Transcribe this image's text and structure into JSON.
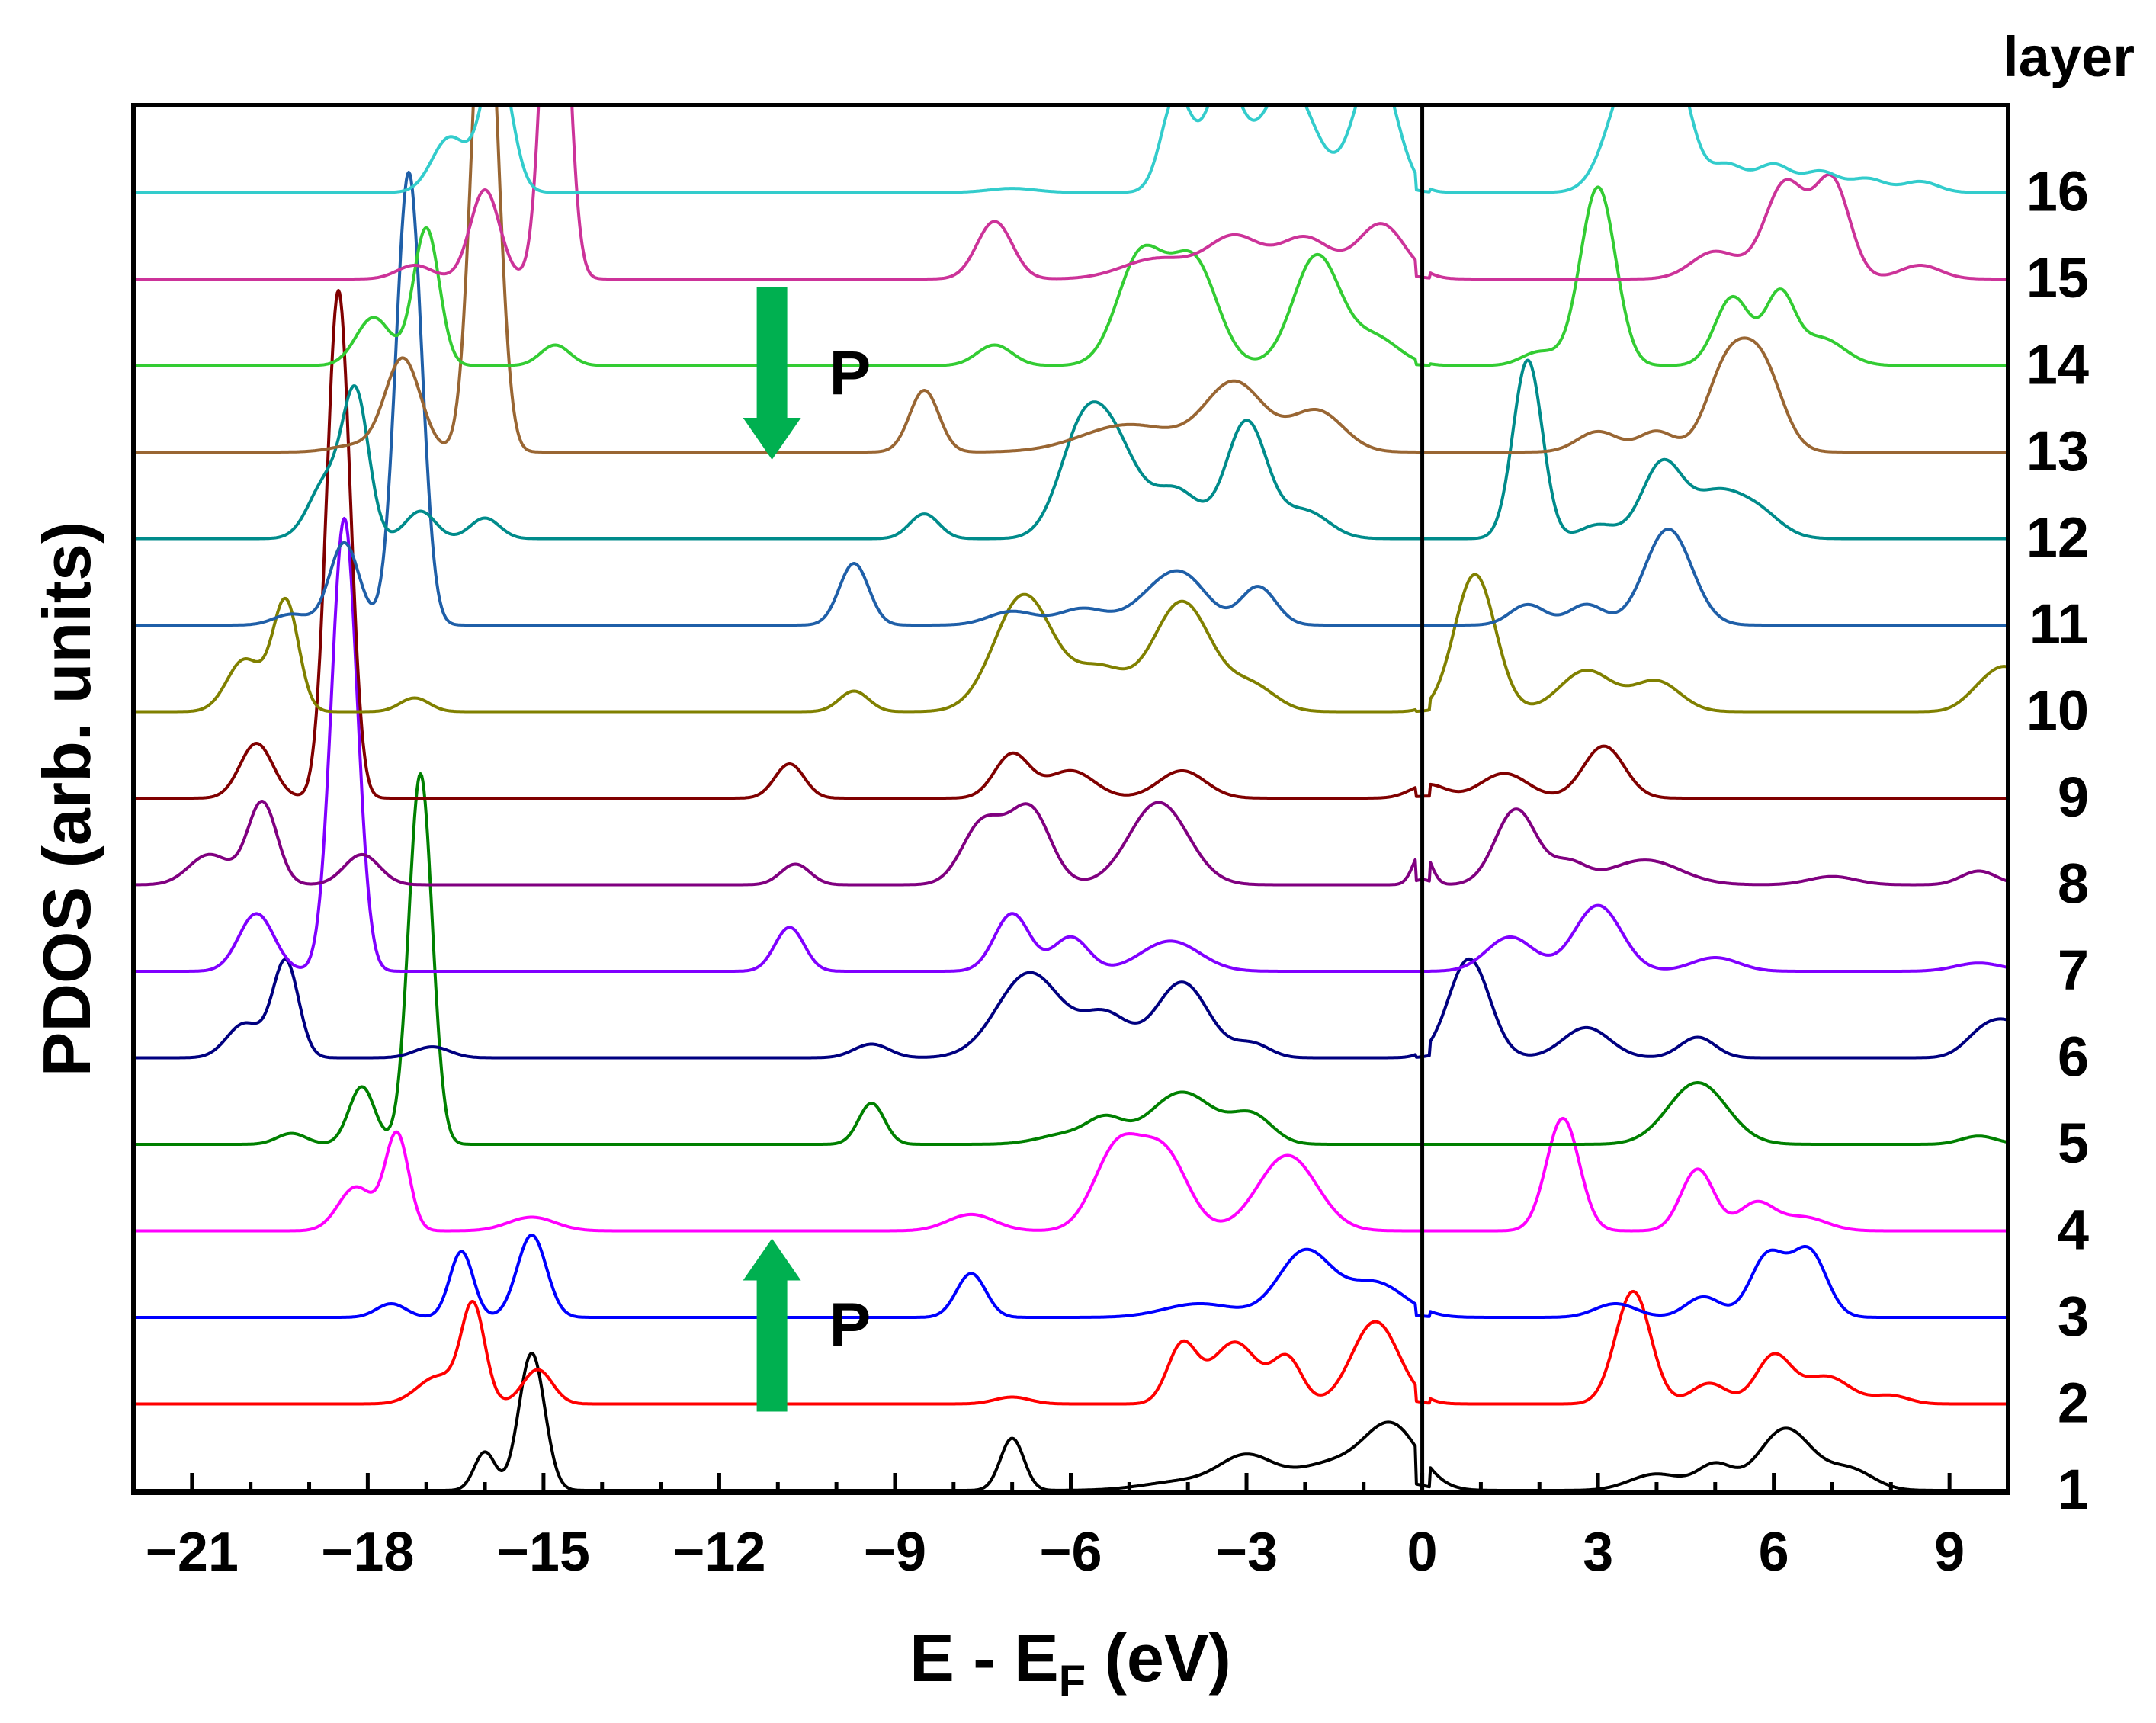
{
  "chart_data": {
    "type": "line",
    "title": "",
    "xlabel_main": "E - E",
    "xlabel_sub": "F",
    "xlabel_unit": " (eV)",
    "ylabel": "PDOS (arb. units)",
    "legend_title": "layer",
    "xlim": [
      -22,
      10
    ],
    "x_ticks": [
      -21,
      -18,
      -15,
      -12,
      -9,
      -6,
      -3,
      0,
      3,
      6,
      9
    ],
    "x_tick_labels": [
      "−21",
      "−18",
      "−15",
      "−12",
      "−9",
      "−6",
      "−3",
      "0",
      "3",
      "6",
      "9"
    ],
    "fermi_level": 0,
    "annotations": [
      {
        "text": "P",
        "direction": "down",
        "x": -11.1,
        "layer_from": 15,
        "layer_to": 13
      },
      {
        "text": "P",
        "direction": "up",
        "x": -11.1,
        "layer_from": 2,
        "layer_to": 4
      }
    ],
    "series": [
      {
        "name": "1",
        "color": "#000000",
        "peaks": [
          [
            -16.0,
            0.28,
            0.18
          ],
          [
            -15.2,
            1.0,
            0.22
          ],
          [
            -7.0,
            0.38,
            0.2
          ],
          [
            -4.0,
            0.07,
            0.7
          ],
          [
            -3.0,
            0.22,
            0.45
          ],
          [
            -1.5,
            0.2,
            0.7
          ],
          [
            -0.5,
            0.42,
            0.45
          ],
          [
            4.0,
            0.12,
            0.45
          ],
          [
            5.0,
            0.18,
            0.3
          ],
          [
            6.2,
            0.45,
            0.45
          ],
          [
            7.3,
            0.15,
            0.4
          ]
        ]
      },
      {
        "name": "2",
        "color": "#ff0000",
        "peaks": [
          [
            -16.8,
            0.2,
            0.35
          ],
          [
            -16.2,
            0.7,
            0.2
          ],
          [
            -15.1,
            0.25,
            0.25
          ],
          [
            -7.0,
            0.05,
            0.3
          ],
          [
            -4.1,
            0.42,
            0.25
          ],
          [
            -3.2,
            0.45,
            0.4
          ],
          [
            -2.3,
            0.32,
            0.25
          ],
          [
            -0.8,
            0.6,
            0.4
          ],
          [
            3.6,
            0.82,
            0.3
          ],
          [
            4.9,
            0.15,
            0.3
          ],
          [
            6.0,
            0.35,
            0.3
          ],
          [
            6.9,
            0.2,
            0.4
          ],
          [
            8.0,
            0.06,
            0.3
          ]
        ]
      },
      {
        "name": "3",
        "color": "#0000ff",
        "peaks": [
          [
            -17.6,
            0.1,
            0.25
          ],
          [
            -16.4,
            0.48,
            0.2
          ],
          [
            -15.2,
            0.6,
            0.25
          ],
          [
            -7.7,
            0.32,
            0.25
          ],
          [
            -3.8,
            0.1,
            0.6
          ],
          [
            -2.0,
            0.48,
            0.45
          ],
          [
            -0.8,
            0.25,
            0.5
          ],
          [
            3.3,
            0.1,
            0.35
          ],
          [
            4.8,
            0.15,
            0.3
          ],
          [
            5.9,
            0.45,
            0.3
          ],
          [
            6.6,
            0.48,
            0.3
          ]
        ]
      },
      {
        "name": "4",
        "color": "#ff00ff",
        "peaks": [
          [
            -18.2,
            0.32,
            0.3
          ],
          [
            -17.5,
            0.7,
            0.2
          ],
          [
            -15.2,
            0.1,
            0.4
          ],
          [
            -7.7,
            0.12,
            0.4
          ],
          [
            -5.2,
            0.6,
            0.4
          ],
          [
            -4.4,
            0.55,
            0.4
          ],
          [
            -2.3,
            0.55,
            0.5
          ],
          [
            2.4,
            0.82,
            0.28
          ],
          [
            4.7,
            0.45,
            0.28
          ],
          [
            5.7,
            0.2,
            0.3
          ],
          [
            6.5,
            0.1,
            0.4
          ]
        ]
      },
      {
        "name": "5",
        "color": "#008000",
        "peaks": [
          [
            -19.3,
            0.08,
            0.25
          ],
          [
            -18.1,
            0.42,
            0.22
          ],
          [
            -17.1,
            2.7,
            0.2
          ],
          [
            -9.4,
            0.3,
            0.22
          ],
          [
            -6.0,
            0.08,
            0.5
          ],
          [
            -5.4,
            0.15,
            0.3
          ],
          [
            -4.1,
            0.38,
            0.55
          ],
          [
            -2.9,
            0.2,
            0.35
          ],
          [
            4.7,
            0.45,
            0.5
          ],
          [
            9.5,
            0.06,
            0.3
          ]
        ]
      },
      {
        "name": "6",
        "color": "#000080",
        "peaks": [
          [
            -20.1,
            0.25,
            0.3
          ],
          [
            -19.4,
            0.7,
            0.22
          ],
          [
            -16.9,
            0.08,
            0.3
          ],
          [
            -9.4,
            0.1,
            0.3
          ],
          [
            -6.7,
            0.62,
            0.55
          ],
          [
            -5.4,
            0.3,
            0.4
          ],
          [
            -4.1,
            0.55,
            0.45
          ],
          [
            -2.9,
            0.1,
            0.3
          ],
          [
            0.8,
            0.72,
            0.35
          ],
          [
            2.8,
            0.22,
            0.4
          ],
          [
            4.7,
            0.15,
            0.3
          ],
          [
            9.5,
            0.1,
            0.3
          ],
          [
            10.0,
            0.25,
            0.4
          ]
        ]
      },
      {
        "name": "7",
        "color": "#8000ff",
        "peaks": [
          [
            -19.9,
            0.42,
            0.3
          ],
          [
            -18.4,
            3.3,
            0.22
          ],
          [
            -10.8,
            0.32,
            0.25
          ],
          [
            -7.0,
            0.42,
            0.3
          ],
          [
            -6.0,
            0.25,
            0.3
          ],
          [
            -4.3,
            0.22,
            0.5
          ],
          [
            1.5,
            0.25,
            0.4
          ],
          [
            3.0,
            0.48,
            0.4
          ],
          [
            5.0,
            0.1,
            0.4
          ],
          [
            9.5,
            0.06,
            0.4
          ]
        ]
      },
      {
        "name": "8",
        "color": "#800080",
        "peaks": [
          [
            -20.7,
            0.22,
            0.35
          ],
          [
            -19.8,
            0.6,
            0.25
          ],
          [
            -18.1,
            0.22,
            0.3
          ],
          [
            -10.7,
            0.15,
            0.25
          ],
          [
            -7.5,
            0.45,
            0.35
          ],
          [
            -6.7,
            0.55,
            0.35
          ],
          [
            -4.5,
            0.6,
            0.5
          ],
          [
            0.0,
            0.25,
            0.15
          ],
          [
            1.6,
            0.55,
            0.35
          ],
          [
            2.5,
            0.15,
            0.3
          ],
          [
            3.8,
            0.18,
            0.6
          ],
          [
            7.0,
            0.06,
            0.4
          ],
          [
            9.5,
            0.1,
            0.3
          ]
        ]
      },
      {
        "name": "9",
        "color": "#800000",
        "peaks": [
          [
            -19.9,
            0.4,
            0.28
          ],
          [
            -18.5,
            3.7,
            0.2
          ],
          [
            -10.8,
            0.25,
            0.25
          ],
          [
            -7.0,
            0.32,
            0.3
          ],
          [
            -6.0,
            0.2,
            0.4
          ],
          [
            -4.1,
            0.2,
            0.4
          ],
          [
            0.1,
            0.1,
            0.3
          ],
          [
            1.4,
            0.18,
            0.4
          ],
          [
            3.1,
            0.38,
            0.35
          ]
        ]
      },
      {
        "name": "10",
        "color": "#808000",
        "peaks": [
          [
            -20.1,
            0.38,
            0.3
          ],
          [
            -19.4,
            0.8,
            0.22
          ],
          [
            -17.2,
            0.1,
            0.25
          ],
          [
            -9.7,
            0.15,
            0.25
          ],
          [
            -6.8,
            0.85,
            0.5
          ],
          [
            -5.5,
            0.3,
            0.45
          ],
          [
            -4.1,
            0.8,
            0.5
          ],
          [
            -2.9,
            0.18,
            0.4
          ],
          [
            0.9,
            1.0,
            0.35
          ],
          [
            2.8,
            0.3,
            0.45
          ],
          [
            4.0,
            0.22,
            0.4
          ],
          [
            9.5,
            0.1,
            0.3
          ],
          [
            10.0,
            0.3,
            0.35
          ]
        ]
      },
      {
        "name": "11",
        "color": "#1f5fa8",
        "peaks": [
          [
            -19.3,
            0.08,
            0.3
          ],
          [
            -18.4,
            0.6,
            0.25
          ],
          [
            -17.3,
            3.3,
            0.22
          ],
          [
            -9.7,
            0.45,
            0.25
          ],
          [
            -7.0,
            0.1,
            0.4
          ],
          [
            -5.8,
            0.12,
            0.4
          ],
          [
            -4.5,
            0.22,
            0.45
          ],
          [
            -4.0,
            0.25,
            0.4
          ],
          [
            -2.8,
            0.28,
            0.3
          ],
          [
            1.8,
            0.15,
            0.3
          ],
          [
            2.8,
            0.15,
            0.3
          ],
          [
            4.2,
            0.7,
            0.4
          ]
        ]
      },
      {
        "name": "12",
        "color": "#008b8b",
        "peaks": [
          [
            -18.7,
            0.42,
            0.3
          ],
          [
            -18.2,
            1.0,
            0.22
          ],
          [
            -17.1,
            0.2,
            0.25
          ],
          [
            -16.0,
            0.15,
            0.25
          ],
          [
            -8.5,
            0.18,
            0.25
          ],
          [
            -5.8,
            0.75,
            0.4
          ],
          [
            -5.2,
            0.55,
            0.4
          ],
          [
            -4.2,
            0.35,
            0.4
          ],
          [
            -3.0,
            0.85,
            0.35
          ],
          [
            -2.0,
            0.2,
            0.4
          ],
          [
            1.8,
            1.3,
            0.25
          ],
          [
            3.0,
            0.1,
            0.3
          ],
          [
            4.1,
            0.55,
            0.35
          ],
          [
            5.0,
            0.3,
            0.4
          ],
          [
            5.7,
            0.2,
            0.4
          ]
        ]
      },
      {
        "name": "13",
        "color": "#996633",
        "peaks": [
          [
            -18.2,
            0.05,
            0.4
          ],
          [
            -17.4,
            0.68,
            0.3
          ],
          [
            -16.0,
            3.8,
            0.22
          ],
          [
            -8.5,
            0.45,
            0.25
          ],
          [
            -5.0,
            0.2,
            0.8
          ],
          [
            -3.2,
            0.5,
            0.5
          ],
          [
            -1.8,
            0.3,
            0.45
          ],
          [
            3.0,
            0.15,
            0.35
          ],
          [
            4.0,
            0.15,
            0.3
          ],
          [
            5.2,
            0.6,
            0.35
          ],
          [
            5.8,
            0.6,
            0.35
          ]
        ]
      },
      {
        "name": "14",
        "color": "#33cc33",
        "peaks": [
          [
            -17.9,
            0.35,
            0.3
          ],
          [
            -17.0,
            1.0,
            0.22
          ],
          [
            -14.8,
            0.15,
            0.25
          ],
          [
            -7.3,
            0.15,
            0.3
          ],
          [
            -4.8,
            0.8,
            0.4
          ],
          [
            -3.9,
            0.75,
            0.4
          ],
          [
            -1.8,
            0.8,
            0.4
          ],
          [
            -0.8,
            0.2,
            0.4
          ],
          [
            2.0,
            0.1,
            0.3
          ],
          [
            3.0,
            1.3,
            0.3
          ],
          [
            5.3,
            0.5,
            0.3
          ],
          [
            6.1,
            0.5,
            0.25
          ],
          [
            6.8,
            0.2,
            0.4
          ]
        ]
      },
      {
        "name": "15",
        "color": "#cc3399",
        "peaks": [
          [
            -17.2,
            0.1,
            0.3
          ],
          [
            -16.0,
            0.65,
            0.25
          ],
          [
            -14.8,
            3.5,
            0.2
          ],
          [
            -7.3,
            0.42,
            0.3
          ],
          [
            -4.5,
            0.15,
            0.6
          ],
          [
            -3.2,
            0.3,
            0.45
          ],
          [
            -2.0,
            0.3,
            0.45
          ],
          [
            -0.7,
            0.4,
            0.4
          ],
          [
            5.0,
            0.2,
            0.4
          ],
          [
            6.2,
            0.7,
            0.35
          ],
          [
            7.0,
            0.7,
            0.3
          ],
          [
            8.5,
            0.1,
            0.35
          ]
        ]
      },
      {
        "name": "16",
        "color": "#33cccc",
        "peaks": [
          [
            -16.6,
            0.4,
            0.3
          ],
          [
            -15.8,
            1.0,
            0.25
          ],
          [
            -7.0,
            0.03,
            0.4
          ],
          [
            -4.2,
            0.7,
            0.25
          ],
          [
            -3.4,
            0.8,
            0.3
          ],
          [
            -2.3,
            0.8,
            0.45
          ],
          [
            -0.8,
            0.95,
            0.35
          ],
          [
            3.6,
            0.9,
            0.4
          ],
          [
            4.3,
            0.8,
            0.3
          ],
          [
            5.2,
            0.2,
            0.3
          ],
          [
            6.0,
            0.2,
            0.3
          ],
          [
            6.8,
            0.15,
            0.3
          ],
          [
            7.6,
            0.1,
            0.3
          ],
          [
            8.5,
            0.08,
            0.3
          ]
        ]
      }
    ]
  }
}
